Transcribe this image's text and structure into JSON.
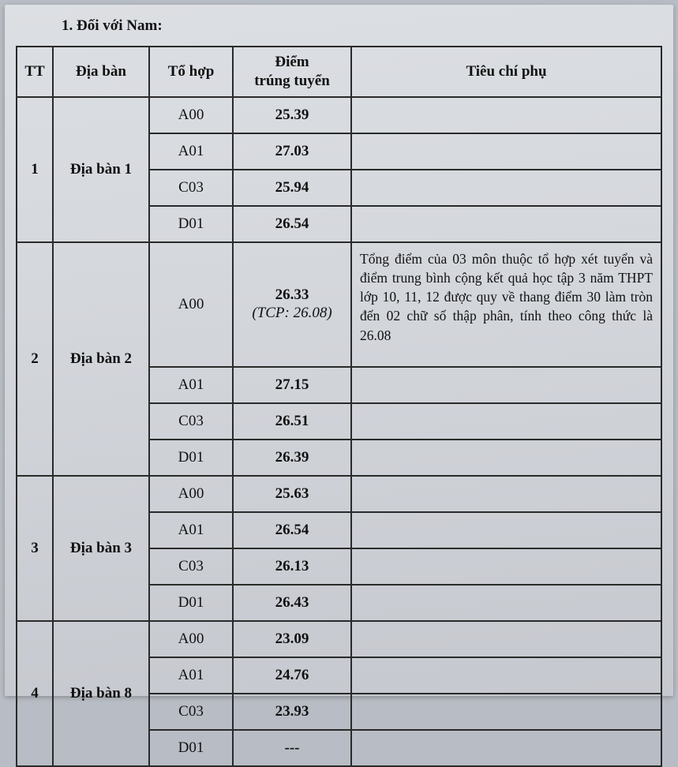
{
  "heading": "1. Đối với Nam:",
  "columns": {
    "tt": "TT",
    "dia_ban": "Địa bàn",
    "to_hop": "Tổ hợp",
    "diem": "Điểm\ntrúng tuyển",
    "tieu_chi": "Tiêu chí phụ"
  },
  "groups": [
    {
      "tt": "1",
      "dia_ban": "Địa bàn 1",
      "rows": [
        {
          "to_hop": "A00",
          "score": "25.39",
          "note": ""
        },
        {
          "to_hop": "A01",
          "score": "27.03",
          "note": ""
        },
        {
          "to_hop": "C03",
          "score": "25.94",
          "note": ""
        },
        {
          "to_hop": "D01",
          "score": "26.54",
          "note": ""
        }
      ]
    },
    {
      "tt": "2",
      "dia_ban": "Địa bàn 2",
      "rows": [
        {
          "to_hop": "A00",
          "score": "26.33",
          "tcp": "(TCP: 26.08)",
          "note": "Tổng điểm của 03 môn thuộc tổ hợp xét tuyển và điểm trung bình cộng kết quả học tập 3 năm THPT lớp 10, 11, 12 được quy về thang điểm 30 làm tròn đến 02 chữ số thập phân, tính theo công thức là 26.08"
        },
        {
          "to_hop": "A01",
          "score": "27.15",
          "note": ""
        },
        {
          "to_hop": "C03",
          "score": "26.51",
          "note": ""
        },
        {
          "to_hop": "D01",
          "score": "26.39",
          "note": ""
        }
      ]
    },
    {
      "tt": "3",
      "dia_ban": "Địa bàn 3",
      "rows": [
        {
          "to_hop": "A00",
          "score": "25.63",
          "note": ""
        },
        {
          "to_hop": "A01",
          "score": "26.54",
          "note": ""
        },
        {
          "to_hop": "C03",
          "score": "26.13",
          "note": ""
        },
        {
          "to_hop": "D01",
          "score": "26.43",
          "note": ""
        }
      ]
    },
    {
      "tt": "4",
      "dia_ban": "Địa bàn 8",
      "rows": [
        {
          "to_hop": "A00",
          "score": "23.09",
          "note": ""
        },
        {
          "to_hop": "A01",
          "score": "24.76",
          "note": ""
        },
        {
          "to_hop": "C03",
          "score": "23.93",
          "note": ""
        },
        {
          "to_hop": "D01",
          "score": "---",
          "note": ""
        }
      ]
    }
  ]
}
